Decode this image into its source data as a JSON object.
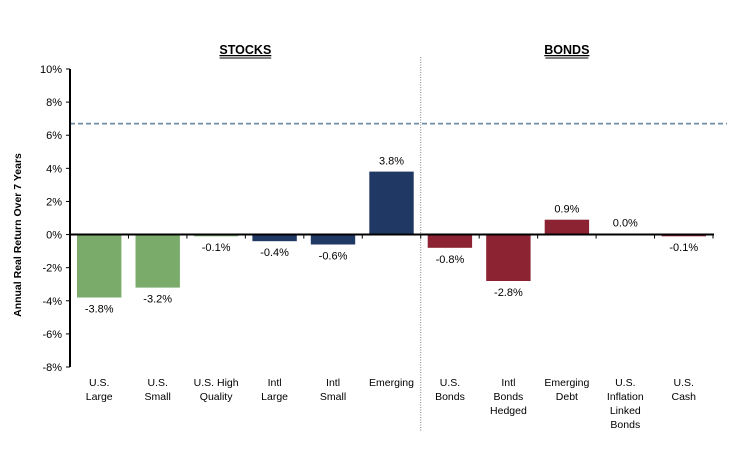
{
  "chart_data": {
    "type": "bar",
    "title": "",
    "xlabel": "",
    "ylabel": "Annual Real Return Over 7 Years",
    "ylim": [
      -8,
      10
    ],
    "y_ticks": [
      10,
      8,
      6,
      4,
      2,
      0,
      -2,
      -4,
      -6,
      -8
    ],
    "y_tick_labels": [
      "10%",
      "8%",
      "6%",
      "4%",
      "2%",
      "0%",
      "-2%",
      "-4%",
      "-6%",
      "-8%"
    ],
    "grid": false,
    "legend": "none",
    "sections": [
      {
        "title": "STOCKS",
        "start": 0,
        "end": 5
      },
      {
        "title": "BONDS",
        "start": 6,
        "end": 10
      }
    ],
    "reference_line": {
      "value": 6.7,
      "style": "dashed",
      "color": "#6f8fa8"
    },
    "categories": [
      [
        "U.S.",
        "Large"
      ],
      [
        "U.S.",
        "Small"
      ],
      [
        "U.S. High",
        "Quality"
      ],
      [
        "Intl",
        "Large"
      ],
      [
        "Intl",
        "Small"
      ],
      [
        "Emerging"
      ],
      [
        "U.S.",
        "Bonds"
      ],
      [
        "Intl",
        "Bonds",
        "Hedged"
      ],
      [
        "Emerging",
        "Debt"
      ],
      [
        "U.S.",
        "Inflation",
        "Linked",
        "Bonds"
      ],
      [
        "U.S.",
        "Cash"
      ]
    ],
    "values": [
      -3.8,
      -3.2,
      -0.1,
      -0.4,
      -0.6,
      3.8,
      -0.8,
      -2.8,
      0.9,
      0.0,
      -0.1
    ],
    "data_labels": [
      "-3.8%",
      "-3.2%",
      "-0.1%",
      "-0.4%",
      "-0.6%",
      "3.8%",
      "-0.8%",
      "-2.8%",
      "0.9%",
      "0.0%",
      "-0.1%"
    ],
    "bar_colors": [
      "#7aab6a",
      "#7aab6a",
      "#7aab6a",
      "#1f3864",
      "#1f3864",
      "#1f3864",
      "#8b2332",
      "#8b2332",
      "#8b2332",
      "#8b2332",
      "#8b2332"
    ]
  }
}
